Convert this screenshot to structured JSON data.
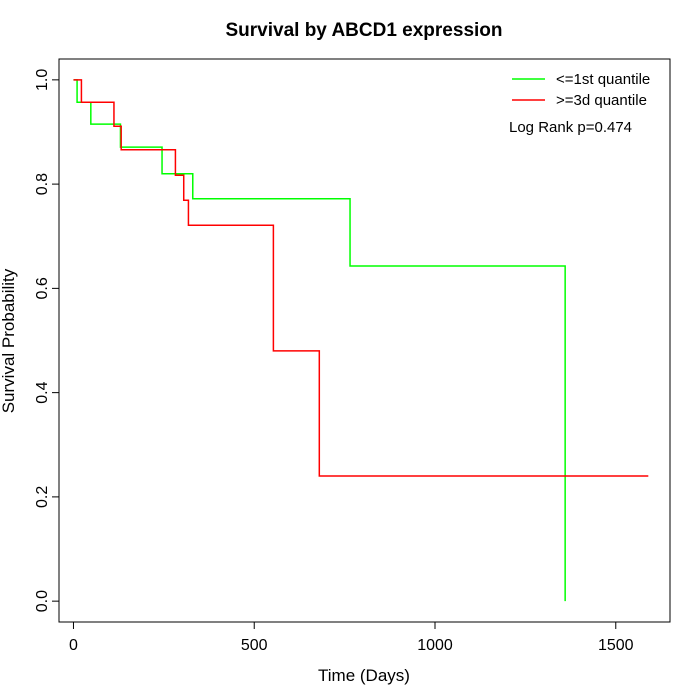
{
  "chart_data": {
    "type": "line",
    "title": "Survival by ABCD1 expression",
    "xlabel": "Time (Days)",
    "ylabel": "Survival Probability",
    "xlim": [
      -40,
      1650
    ],
    "ylim": [
      -0.04,
      1.04
    ],
    "x_ticks": [
      0,
      500,
      1000,
      1500
    ],
    "y_ticks": [
      0.0,
      0.2,
      0.4,
      0.6,
      0.8,
      1.0
    ],
    "x_tick_labels": [
      "0",
      "500",
      "1000",
      "1500"
    ],
    "y_tick_labels": [
      "0.0",
      "0.2",
      "0.4",
      "0.6",
      "0.8",
      "1.0"
    ],
    "grid": false,
    "legend_position": "top-right",
    "annotation": "Log Rank p=0.474",
    "series": [
      {
        "name": "<=1st quantile",
        "color": "#00ff00",
        "points": [
          [
            0,
            1.0
          ],
          [
            10,
            0.957
          ],
          [
            48,
            0.915
          ],
          [
            130,
            0.871
          ],
          [
            245,
            0.82
          ],
          [
            330,
            0.772
          ],
          [
            765,
            0.643
          ],
          [
            1360,
            0.0
          ]
        ]
      },
      {
        "name": ">=3d quantile",
        "color": "#ff0000",
        "points": [
          [
            0,
            1.0
          ],
          [
            22,
            0.957
          ],
          [
            112,
            0.911
          ],
          [
            132,
            0.866
          ],
          [
            282,
            0.817
          ],
          [
            305,
            0.769
          ],
          [
            318,
            0.721
          ],
          [
            553,
            0.48
          ],
          [
            680,
            0.24
          ],
          [
            1590,
            0.24
          ]
        ]
      }
    ]
  }
}
